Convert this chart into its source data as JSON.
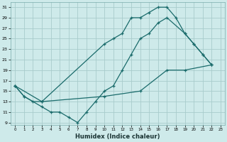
{
  "xlabel": "Humidex (Indice chaleur)",
  "bg_color": "#ceeaea",
  "grid_color": "#a8cccc",
  "line_color": "#1a6b6b",
  "xlim": [
    -0.5,
    23.5
  ],
  "ylim": [
    8.5,
    32
  ],
  "xticks": [
    0,
    1,
    2,
    3,
    4,
    5,
    6,
    7,
    8,
    9,
    10,
    11,
    12,
    13,
    14,
    15,
    16,
    17,
    18,
    19,
    20,
    21,
    22,
    23
  ],
  "yticks": [
    9,
    11,
    13,
    15,
    17,
    19,
    21,
    23,
    25,
    27,
    29,
    31
  ],
  "line1_x": [
    0,
    1,
    2,
    3,
    10,
    11,
    12,
    13,
    14,
    15,
    16,
    17,
    18,
    19,
    20,
    21,
    22
  ],
  "line1_y": [
    16,
    14,
    13,
    13,
    24,
    25,
    26,
    29,
    29,
    30,
    31,
    31,
    29,
    26,
    24,
    22,
    20
  ],
  "line2_x": [
    0,
    1,
    3,
    4,
    5,
    6,
    7,
    8,
    9,
    10,
    11,
    12,
    13,
    14,
    15,
    16,
    17,
    19,
    20,
    21,
    22
  ],
  "line2_y": [
    16,
    14,
    12,
    11,
    11,
    10,
    9,
    11,
    13,
    15,
    16,
    19,
    22,
    25,
    26,
    28,
    29,
    26,
    24,
    22,
    20
  ],
  "line3_x": [
    0,
    3,
    10,
    14,
    17,
    19,
    22
  ],
  "line3_y": [
    16,
    13,
    14,
    15,
    19,
    19,
    20
  ]
}
